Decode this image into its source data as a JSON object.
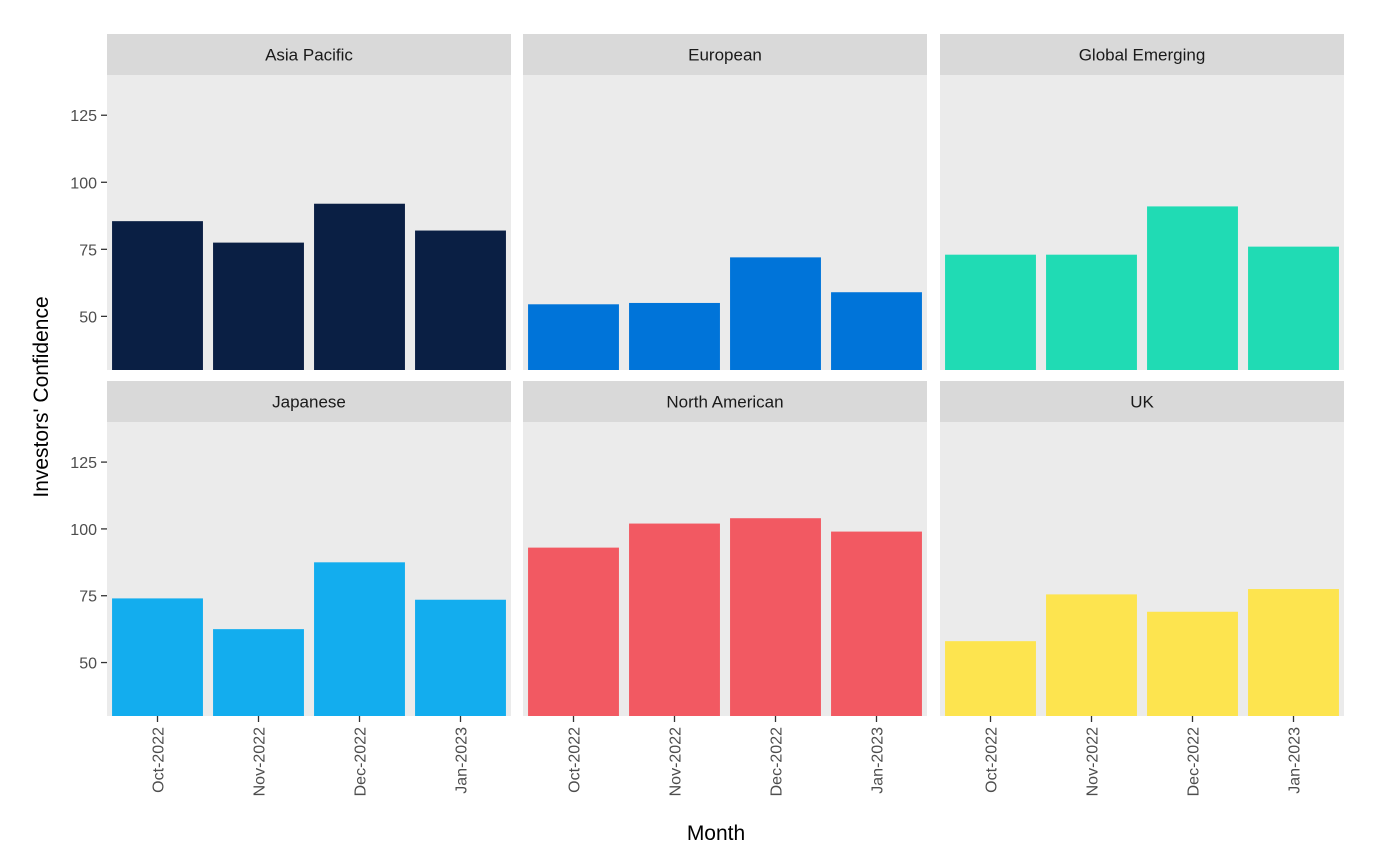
{
  "chart_data": {
    "type": "bar",
    "layout": "faceted grid, 2 rows x 3 columns",
    "xlabel": "Month",
    "ylabel": "Investors' Confidence",
    "categories": [
      "Oct-2022",
      "Nov-2022",
      "Dec-2022",
      "Jan-2023"
    ],
    "ylim": [
      30,
      140
    ],
    "yticks": [
      50,
      75,
      100,
      125
    ],
    "grid": false,
    "legend": "none",
    "panels": [
      {
        "name": "Asia Pacific",
        "color": "#0a1f44",
        "values": [
          85.5,
          77.5,
          92,
          82
        ]
      },
      {
        "name": "European",
        "color": "#0074d9",
        "values": [
          54.5,
          55,
          72,
          59
        ]
      },
      {
        "name": "Global Emerging",
        "color": "#20dbb4",
        "values": [
          73,
          73,
          91,
          76
        ]
      },
      {
        "name": "Japanese",
        "color": "#13adee",
        "values": [
          74,
          62.5,
          87.5,
          73.5
        ]
      },
      {
        "name": "North American",
        "color": "#f25962",
        "values": [
          93,
          102,
          104,
          99
        ]
      },
      {
        "name": "UK",
        "color": "#fde44f",
        "values": [
          58,
          75.5,
          69,
          77.5
        ]
      }
    ]
  }
}
